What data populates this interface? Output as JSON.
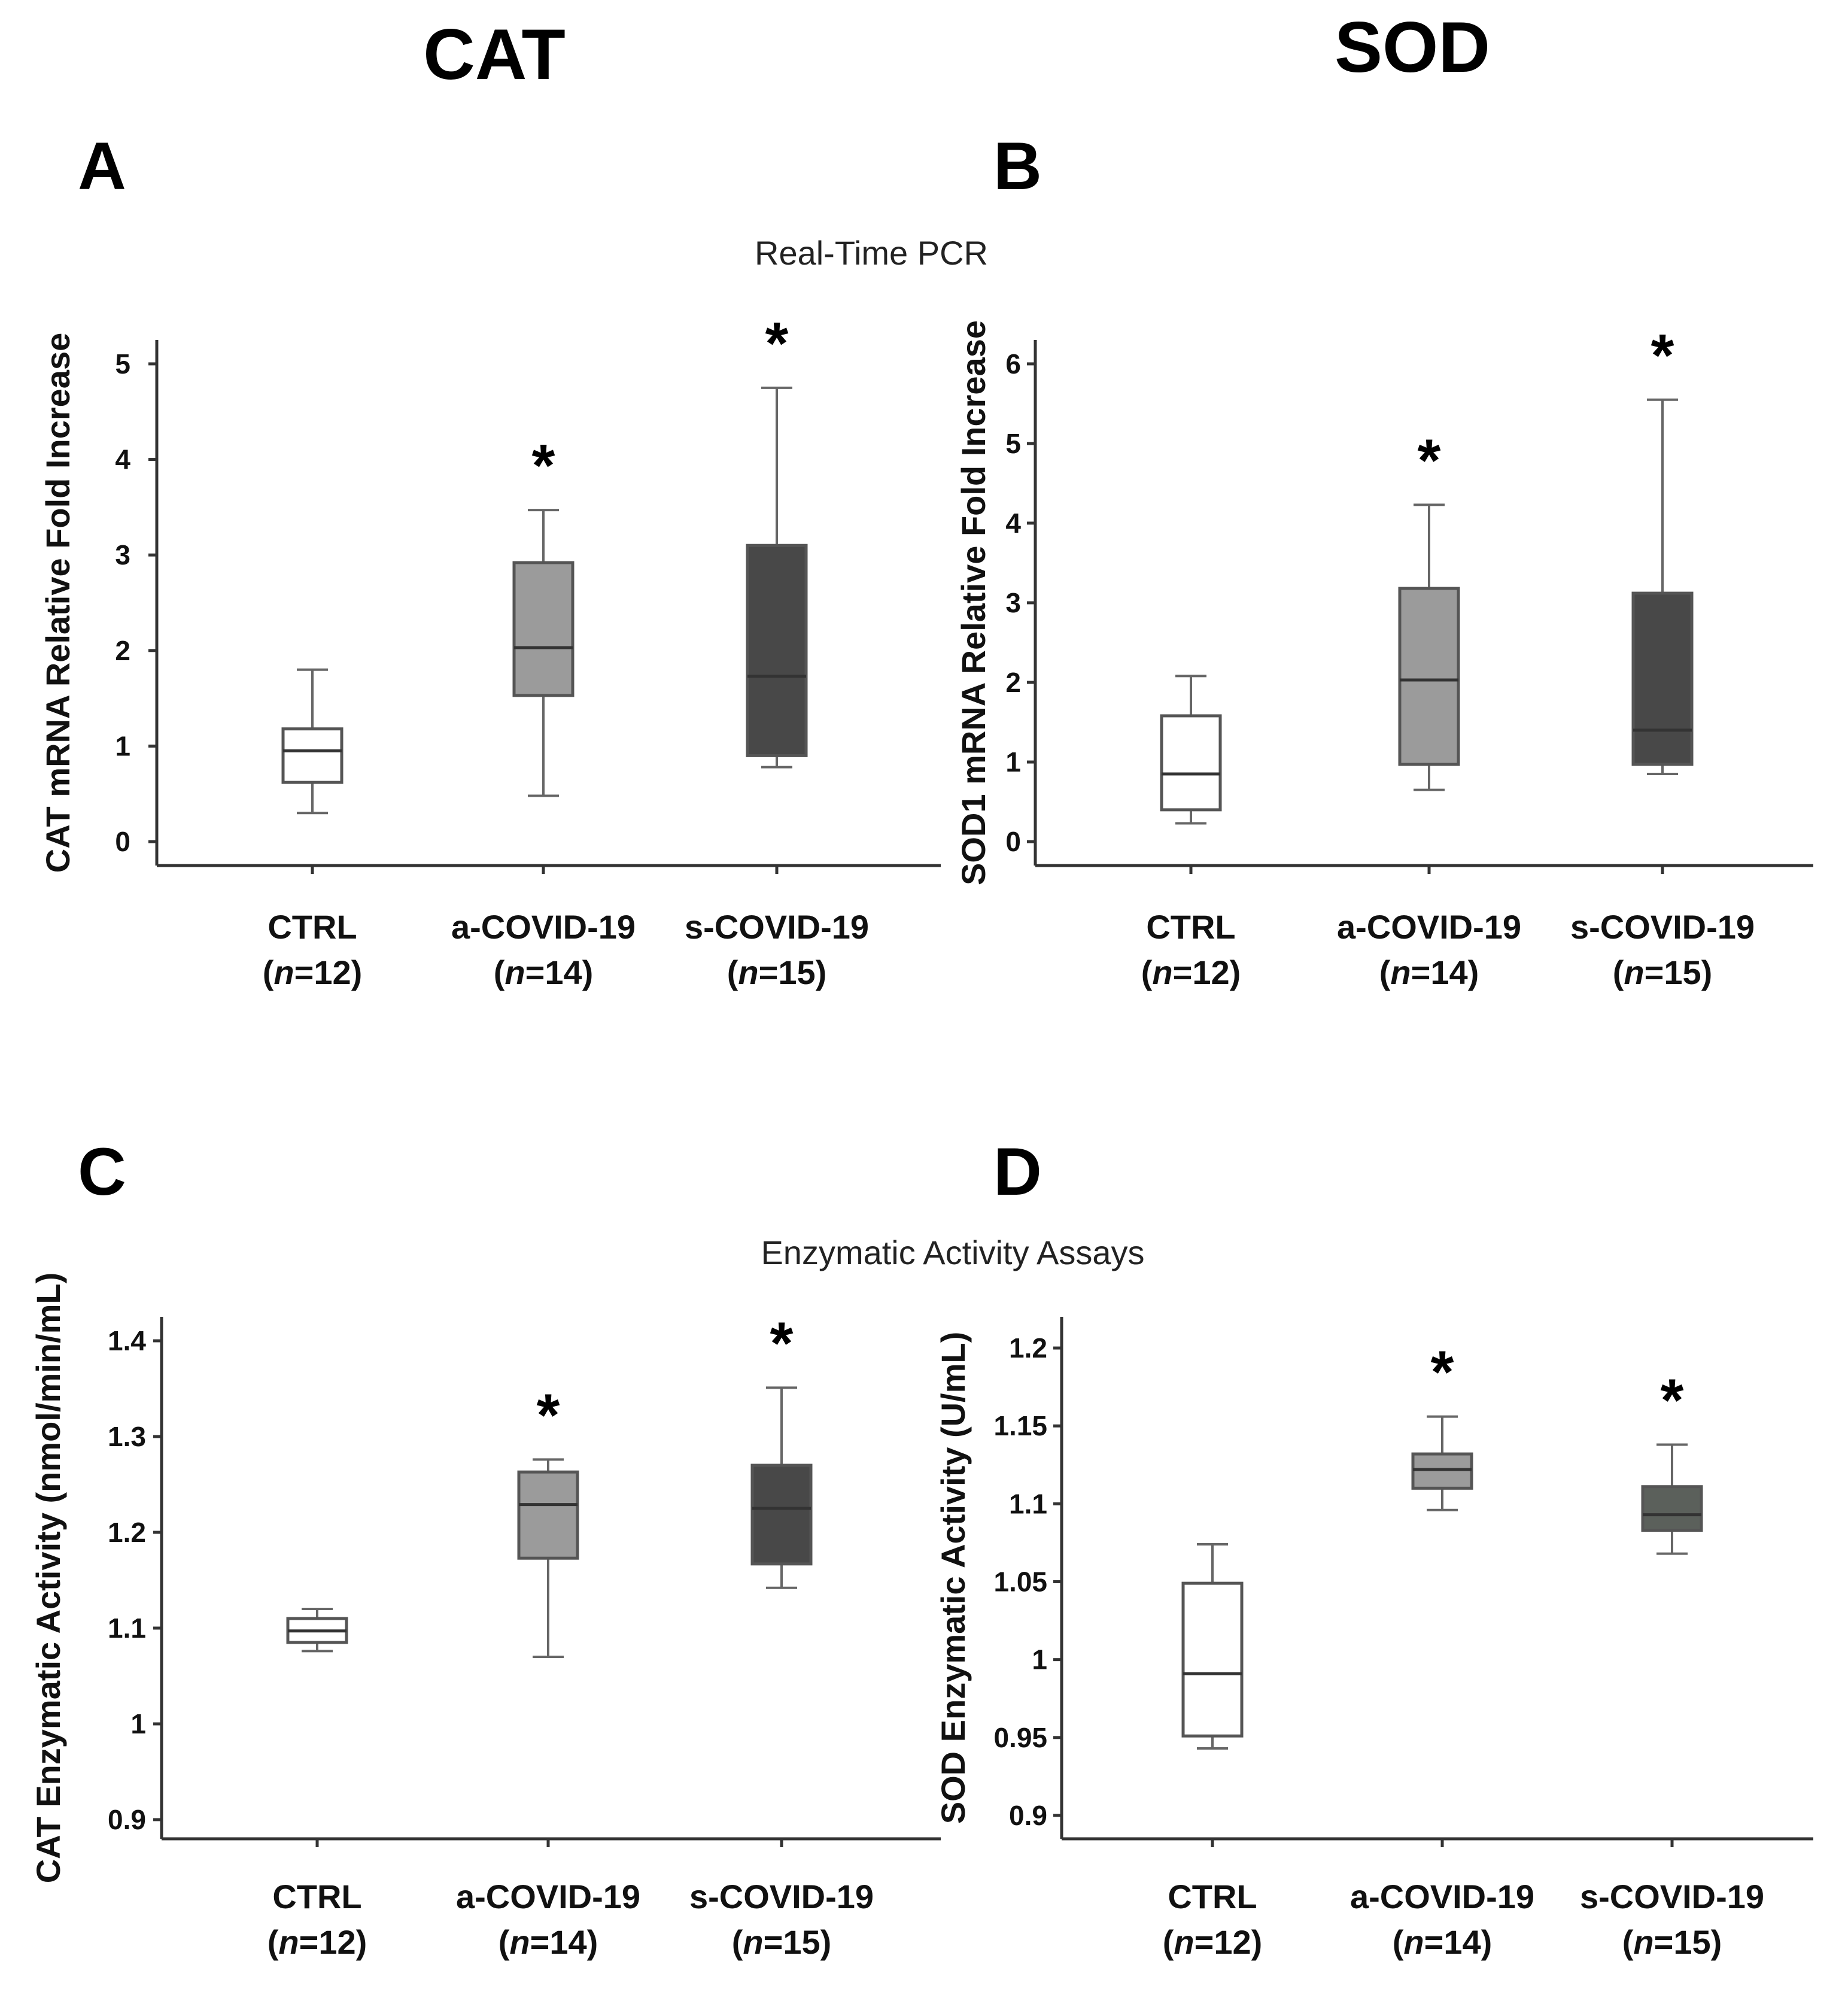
{
  "figure": {
    "column_titles": [
      "CAT",
      "SOD"
    ],
    "section_titles": [
      "Real-Time PCR",
      "Enzymatic Activity Assays"
    ]
  },
  "chart_data": [
    {
      "type": "box",
      "panel": "A",
      "ylabel": "CAT mRNA Relative Fold Increase",
      "ylim": [
        -0.25,
        5.25
      ],
      "yticks": [
        "0",
        "1",
        "2",
        "3",
        "4",
        "5"
      ],
      "ytick_values": [
        0,
        1,
        2,
        3,
        4,
        5
      ],
      "categories": [
        [
          "CTRL",
          "(n=12)"
        ],
        [
          "a-COVID-19",
          "(n=14)"
        ],
        [
          "s-COVID-19",
          "(n=15)"
        ]
      ],
      "boxes": [
        {
          "min": 0.3,
          "q1": 0.62,
          "median": 0.95,
          "q3": 1.18,
          "max": 1.8,
          "fill": "#ffffff",
          "star": false
        },
        {
          "min": 0.48,
          "q1": 1.53,
          "median": 2.03,
          "q3": 2.92,
          "max": 3.47,
          "fill": "#9b9b9b",
          "star": true
        },
        {
          "min": 0.78,
          "q1": 0.9,
          "median": 1.73,
          "q3": 3.1,
          "max": 4.75,
          "fill": "#484848",
          "star": true
        }
      ],
      "star_label": "*",
      "grid": false
    },
    {
      "type": "box",
      "panel": "B",
      "ylabel": "SOD1 mRNA Relative Fold Increase",
      "ylim": [
        -0.3,
        6.3
      ],
      "yticks": [
        "0",
        "1",
        "2",
        "3",
        "4",
        "5",
        "6"
      ],
      "ytick_values": [
        0,
        1,
        2,
        3,
        4,
        5,
        6
      ],
      "categories": [
        [
          "CTRL",
          "(n=12)"
        ],
        [
          "a-COVID-19",
          "(n=14)"
        ],
        [
          "s-COVID-19",
          "(n=15)"
        ]
      ],
      "boxes": [
        {
          "min": 0.23,
          "q1": 0.4,
          "median": 0.85,
          "q3": 1.58,
          "max": 2.08,
          "fill": "#ffffff",
          "star": false
        },
        {
          "min": 0.65,
          "q1": 0.97,
          "median": 2.03,
          "q3": 3.18,
          "max": 4.23,
          "fill": "#9b9b9b",
          "star": true
        },
        {
          "min": 0.85,
          "q1": 0.97,
          "median": 1.4,
          "q3": 3.12,
          "max": 5.55,
          "fill": "#484848",
          "star": true
        }
      ],
      "star_label": "*",
      "grid": false
    },
    {
      "type": "box",
      "panel": "C",
      "ylabel": "CAT Enzymatic Activity (nmol/min/mL)",
      "ylim": [
        0.88,
        1.425
      ],
      "yticks": [
        "0.9",
        "1",
        "1.1",
        "1.2",
        "1.3",
        "1.4"
      ],
      "ytick_values": [
        0.9,
        1.0,
        1.1,
        1.2,
        1.3,
        1.4
      ],
      "categories": [
        [
          "CTRL",
          "(n=12)"
        ],
        [
          "a-COVID-19",
          "(n=14)"
        ],
        [
          "s-COVID-19",
          "(n=15)"
        ]
      ],
      "boxes": [
        {
          "min": 1.076,
          "q1": 1.085,
          "median": 1.097,
          "q3": 1.11,
          "max": 1.12,
          "fill": "#ffffff",
          "star": false
        },
        {
          "min": 1.07,
          "q1": 1.173,
          "median": 1.229,
          "q3": 1.263,
          "max": 1.276,
          "fill": "#9b9b9b",
          "star": true
        },
        {
          "min": 1.142,
          "q1": 1.167,
          "median": 1.225,
          "q3": 1.27,
          "max": 1.351,
          "fill": "#484848",
          "star": true
        }
      ],
      "star_label": "*",
      "grid": false
    },
    {
      "type": "box",
      "panel": "D",
      "ylabel": "SOD Enzymatic Activity (U/mL)",
      "ylim": [
        0.885,
        1.22
      ],
      "yticks": [
        "0.9",
        "0.95",
        "1",
        "1.05",
        "1.1",
        "1.15",
        "1.2"
      ],
      "ytick_values": [
        0.9,
        0.95,
        1.0,
        1.05,
        1.1,
        1.15,
        1.2
      ],
      "categories": [
        [
          "CTRL",
          "(n=12)"
        ],
        [
          "a-COVID-19",
          "(n=14)"
        ],
        [
          "s-COVID-19",
          "(n=15)"
        ]
      ],
      "boxes": [
        {
          "min": 0.943,
          "q1": 0.951,
          "median": 0.991,
          "q3": 1.049,
          "max": 1.074,
          "fill": "#ffffff",
          "star": false
        },
        {
          "min": 1.096,
          "q1": 1.11,
          "median": 1.122,
          "q3": 1.132,
          "max": 1.156,
          "fill": "#9b9b9b",
          "star": true
        },
        {
          "min": 1.068,
          "q1": 1.083,
          "median": 1.093,
          "q3": 1.111,
          "max": 1.138,
          "fill": "#5b605b",
          "star": true
        }
      ],
      "star_label": "*",
      "grid": false
    }
  ]
}
